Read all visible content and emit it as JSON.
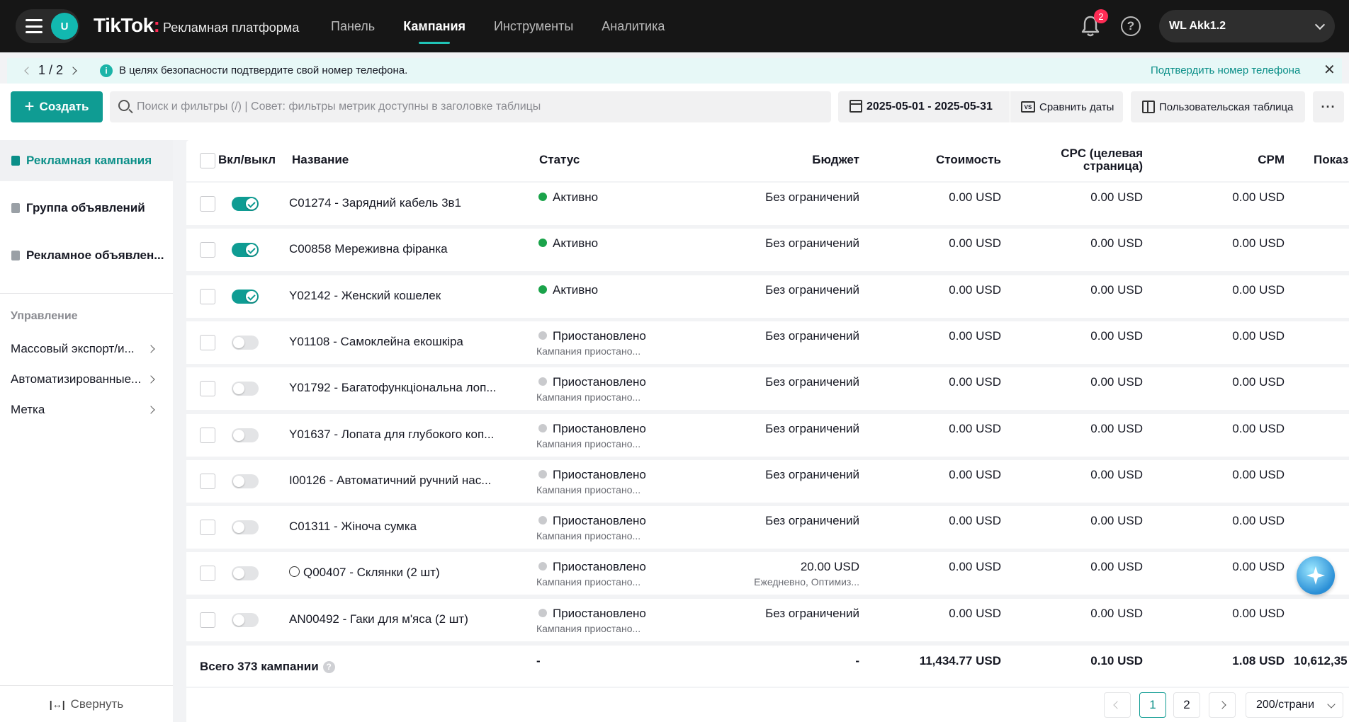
{
  "topbar": {
    "avatar": "U",
    "brand": "TikTok",
    "brand_colon": ":",
    "brand_sub": "Рекламная платформа",
    "nav": [
      {
        "label": "Панель",
        "active": false
      },
      {
        "label": "Кампания",
        "active": true
      },
      {
        "label": "Инструменты",
        "active": false
      },
      {
        "label": "Аналитика",
        "active": false
      }
    ],
    "notif_count": "2",
    "help_glyph": "?",
    "account": "WL Akk1.2"
  },
  "banner": {
    "pager": "1 / 2",
    "info_glyph": "i",
    "message": "В целях безопасности подтвердите свой номер телефона.",
    "link": "Подтвердить номер телефона",
    "close": "✕"
  },
  "toolbar": {
    "create": "Создать",
    "search_placeholder": "Поиск и фильтры (/) | Совет: фильтры метрик доступны в заголовке таблицы",
    "date_range": "2025-05-01 - 2025-05-31",
    "vs": "VS",
    "compare": "Сравнить даты",
    "custom_table": "Пользовательская таблица",
    "more": "···"
  },
  "sidebar": {
    "levels": [
      {
        "label": "Рекламная кампания",
        "active": true
      },
      {
        "label": "Группа объявлений",
        "active": false
      },
      {
        "label": "Рекламное объявлен...",
        "active": false
      }
    ],
    "manage_heading": "Управление",
    "links": [
      "Массовый экспорт/и...",
      "Автоматизированные...",
      "Метка"
    ],
    "collapse": "Свернуть",
    "collapse_icon": "|↔|"
  },
  "table": {
    "headers": {
      "toggle": "Вкл/выкл",
      "name": "Название",
      "status": "Статус",
      "budget": "Бюджет",
      "cost": "Стоимость",
      "cpc_line1": "CPC (целевая",
      "cpc_line2": "страница)",
      "cpm": "CPM",
      "impressions": "Показ"
    },
    "rows": [
      {
        "on": true,
        "name": "C01274 - Зарядний кабель 3в1",
        "status": "Активно",
        "status_sub": "",
        "budget": "Без ограничений",
        "budget_sub": "",
        "cost": "0.00 USD",
        "cpc": "0.00 USD",
        "cpm": "0.00 USD"
      },
      {
        "on": true,
        "name": "C00858 Мереживна фіранка",
        "status": "Активно",
        "status_sub": "",
        "budget": "Без ограничений",
        "budget_sub": "",
        "cost": "0.00 USD",
        "cpc": "0.00 USD",
        "cpm": "0.00 USD"
      },
      {
        "on": true,
        "name": "Y02142 - Женский кошелек",
        "status": "Активно",
        "status_sub": "",
        "budget": "Без ограничений",
        "budget_sub": "",
        "cost": "0.00 USD",
        "cpc": "0.00 USD",
        "cpm": "0.00 USD"
      },
      {
        "on": false,
        "name": "Y01108 - Самоклейна екошкіра",
        "status": "Приостановлено",
        "status_sub": "Кампания приостано...",
        "budget": "Без ограничений",
        "budget_sub": "",
        "cost": "0.00 USD",
        "cpc": "0.00 USD",
        "cpm": "0.00 USD"
      },
      {
        "on": false,
        "name": "Y01792 - Багатофункціональна лоп...",
        "status": "Приостановлено",
        "status_sub": "Кампания приостано...",
        "budget": "Без ограничений",
        "budget_sub": "",
        "cost": "0.00 USD",
        "cpc": "0.00 USD",
        "cpm": "0.00 USD"
      },
      {
        "on": false,
        "name": "Y01637 - Лопата для глубокого коп...",
        "status": "Приостановлено",
        "status_sub": "Кампания приостано...",
        "budget": "Без ограничений",
        "budget_sub": "",
        "cost": "0.00 USD",
        "cpc": "0.00 USD",
        "cpm": "0.00 USD"
      },
      {
        "on": false,
        "name": "I00126 - Автоматичний ручний нас...",
        "status": "Приостановлено",
        "status_sub": "Кампания приостано...",
        "budget": "Без ограничений",
        "budget_sub": "",
        "cost": "0.00 USD",
        "cpc": "0.00 USD",
        "cpm": "0.00 USD"
      },
      {
        "on": false,
        "name": "C01311 - Жіноча сумка",
        "status": "Приостановлено",
        "status_sub": "Кампания приостано...",
        "budget": "Без ограничений",
        "budget_sub": "",
        "cost": "0.00 USD",
        "cpc": "0.00 USD",
        "cpm": "0.00 USD"
      },
      {
        "on": false,
        "name": "Q00407 - Склянки (2 шт)",
        "smart_icon": true,
        "status": "Приостановлено",
        "status_sub": "Кампания приостано...",
        "budget": "20.00 USD",
        "budget_sub": "Ежедневно, Оптимиз...",
        "cost": "0.00 USD",
        "cpc": "0.00 USD",
        "cpm": "0.00 USD"
      },
      {
        "on": false,
        "name": "AN00492 - Гаки для м'яса (2 шт)",
        "status": "Приостановлено",
        "status_sub": "Кампания приостано...",
        "budget": "Без ограничений",
        "budget_sub": "",
        "cost": "0.00 USD",
        "cpc": "0.00 USD",
        "cpm": "0.00 USD"
      }
    ],
    "footer": {
      "total": "Всего 373 кампании",
      "qmark": "?",
      "status": "-",
      "budget": "-",
      "cost": "11,434.77 USD",
      "cpc": "0.10 USD",
      "cpm": "1.08 USD",
      "impressions": "10,612,35"
    }
  },
  "pagination": {
    "pages": [
      "1",
      "2"
    ],
    "current": "1",
    "page_size": "200/страни"
  },
  "colors": {
    "accent": "#0f9c93",
    "active_dot": "#1aa34a",
    "paused_dot": "#c9cacd",
    "badge": "#fe2c55"
  }
}
